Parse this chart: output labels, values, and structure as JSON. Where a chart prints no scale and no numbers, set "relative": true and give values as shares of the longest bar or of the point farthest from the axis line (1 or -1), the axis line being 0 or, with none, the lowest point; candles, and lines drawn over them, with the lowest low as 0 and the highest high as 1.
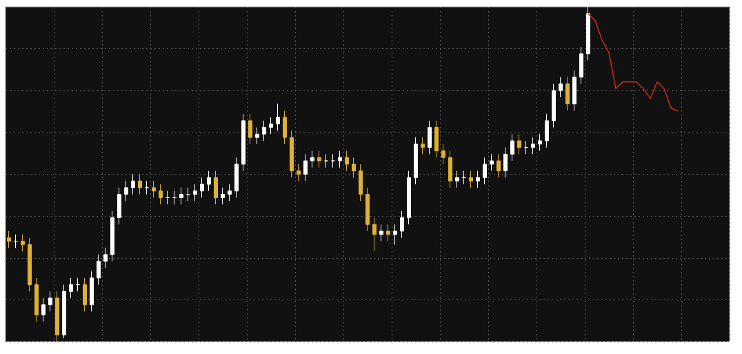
{
  "chart_data": [
    {
      "type": "candlestick",
      "relative": true,
      "grid": true,
      "legend": false,
      "colors": [
        "#e0b030",
        "#ffffff",
        "#e0b030",
        "#e0b030",
        "#e0b030",
        "#ffffff",
        "#ffffff",
        "#e0b030",
        "#ffffff",
        "#ffffff",
        "#ffffff",
        "#e0b030",
        "#ffffff",
        "#ffffff",
        "#ffffff",
        "#ffffff",
        "#ffffff",
        "#ffffff",
        "#ffffff",
        "#e0b030",
        "#ffffff",
        "#e0b030",
        "#e0b030",
        "#ffffff",
        "#ffffff",
        "#ffffff",
        "#ffffff",
        "#ffffff",
        "#ffffff",
        "#ffffff",
        "#e0b030",
        "#ffffff",
        "#ffffff",
        "#ffffff",
        "#ffffff",
        "#e0b030",
        "#ffffff",
        "#ffffff",
        "#ffffff",
        "#ffffff",
        "#e0b030",
        "#e0b030",
        "#e0b030",
        "#ffffff",
        "#ffffff",
        "#e0b030",
        "#ffffff",
        "#ffffff",
        "#ffffff",
        "#e0b030",
        "#e0b030",
        "#e0b030",
        "#e0b030",
        "#e0b030",
        "#ffffff",
        "#e0b030",
        "#ffffff",
        "#ffffff",
        "#ffffff",
        "#ffffff",
        "#e0b030",
        "#ffffff",
        "#e0b030",
        "#e0b030",
        "#e0b030",
        "#ffffff",
        "#ffffff",
        "#e0b030",
        "#ffffff",
        "#ffffff",
        "#ffffff",
        "#e0b030",
        "#ffffff",
        "#ffffff",
        "#e0b030",
        "#ffffff",
        "#ffffff",
        "#ffffff",
        "#ffffff",
        "#ffffff",
        "#ffffff",
        "#e0b030",
        "#ffffff",
        "#ffffff",
        "#ffffff"
      ],
      "categories": [
        null,
        null,
        null,
        null,
        null,
        null,
        null,
        null,
        null,
        null,
        null,
        null,
        null,
        null,
        null,
        null,
        null,
        null,
        null,
        null,
        null,
        null,
        null,
        null,
        null,
        null,
        null,
        null,
        null,
        null,
        null,
        null,
        null,
        null,
        null,
        null,
        null,
        null,
        null,
        null,
        null,
        null,
        null,
        null,
        null,
        null,
        null,
        null,
        null,
        null,
        null,
        null,
        null,
        null,
        null,
        null,
        null,
        null,
        null,
        null,
        null,
        null,
        null,
        null,
        null,
        null,
        null,
        null,
        null,
        null,
        null,
        null,
        null,
        null,
        null,
        null,
        null,
        null,
        null,
        null,
        null,
        null,
        null,
        null,
        null
      ],
      "ohlc": [
        [
          0.31,
          0.33,
          0.28,
          0.3
        ],
        [
          0.3,
          0.32,
          0.28,
          0.3
        ],
        [
          0.3,
          0.32,
          0.27,
          0.29
        ],
        [
          0.29,
          0.31,
          0.15,
          0.17
        ],
        [
          0.17,
          0.19,
          0.06,
          0.08
        ],
        [
          0.08,
          0.13,
          0.06,
          0.11
        ],
        [
          0.11,
          0.15,
          0.09,
          0.13
        ],
        [
          0.13,
          0.15,
          0,
          0.02
        ],
        [
          0.02,
          0.17,
          0.01,
          0.15
        ],
        [
          0.15,
          0.19,
          0.13,
          0.17
        ],
        [
          0.17,
          0.19,
          0.15,
          0.17
        ],
        [
          0.17,
          0.19,
          0.09,
          0.11
        ],
        [
          0.11,
          0.21,
          0.09,
          0.19
        ],
        [
          0.19,
          0.26,
          0.17,
          0.24
        ],
        [
          0.24,
          0.28,
          0.22,
          0.26
        ],
        [
          0.26,
          0.39,
          0.24,
          0.37
        ],
        [
          0.37,
          0.46,
          0.35,
          0.44
        ],
        [
          0.44,
          0.48,
          0.42,
          0.46
        ],
        [
          0.46,
          0.5,
          0.44,
          0.48
        ],
        [
          0.48,
          0.5,
          0.44,
          0.46
        ],
        [
          0.46,
          0.48,
          0.44,
          0.46
        ],
        [
          0.46,
          0.48,
          0.43,
          0.45
        ],
        [
          0.45,
          0.47,
          0.41,
          0.43
        ],
        [
          0.43,
          0.45,
          0.41,
          0.43
        ],
        [
          0.43,
          0.45,
          0.41,
          0.43
        ],
        [
          0.43,
          0.46,
          0.41,
          0.44
        ],
        [
          0.44,
          0.46,
          0.42,
          0.44
        ],
        [
          0.44,
          0.47,
          0.42,
          0.45
        ],
        [
          0.45,
          0.49,
          0.43,
          0.47
        ],
        [
          0.47,
          0.51,
          0.45,
          0.49
        ],
        [
          0.49,
          0.51,
          0.41,
          0.43
        ],
        [
          0.43,
          0.46,
          0.41,
          0.44
        ],
        [
          0.44,
          0.47,
          0.42,
          0.45
        ],
        [
          0.45,
          0.55,
          0.43,
          0.53
        ],
        [
          0.53,
          0.68,
          0.51,
          0.66
        ],
        [
          0.66,
          0.68,
          0.59,
          0.61
        ],
        [
          0.61,
          0.64,
          0.59,
          0.62
        ],
        [
          0.62,
          0.66,
          0.6,
          0.64
        ],
        [
          0.64,
          0.67,
          0.62,
          0.65
        ],
        [
          0.65,
          0.71,
          0.63,
          0.67
        ],
        [
          0.67,
          0.69,
          0.59,
          0.61
        ],
        [
          0.61,
          0.63,
          0.49,
          0.51
        ],
        [
          0.51,
          0.53,
          0.48,
          0.5
        ],
        [
          0.5,
          0.56,
          0.48,
          0.54
        ],
        [
          0.54,
          0.57,
          0.52,
          0.55
        ],
        [
          0.55,
          0.57,
          0.52,
          0.54
        ],
        [
          0.54,
          0.56,
          0.52,
          0.54
        ],
        [
          0.54,
          0.56,
          0.52,
          0.54
        ],
        [
          0.54,
          0.57,
          0.52,
          0.55
        ],
        [
          0.55,
          0.57,
          0.51,
          0.53
        ],
        [
          0.53,
          0.55,
          0.49,
          0.51
        ],
        [
          0.51,
          0.53,
          0.42,
          0.44
        ],
        [
          0.44,
          0.46,
          0.33,
          0.35
        ],
        [
          0.35,
          0.37,
          0.27,
          0.32
        ],
        [
          0.32,
          0.35,
          0.3,
          0.33
        ],
        [
          0.33,
          0.35,
          0.3,
          0.32
        ],
        [
          0.32,
          0.35,
          0.29,
          0.33
        ],
        [
          0.33,
          0.39,
          0.31,
          0.37
        ],
        [
          0.37,
          0.51,
          0.35,
          0.49
        ],
        [
          0.49,
          0.61,
          0.47,
          0.59
        ],
        [
          0.59,
          0.61,
          0.56,
          0.58
        ],
        [
          0.58,
          0.66,
          0.56,
          0.64
        ],
        [
          0.64,
          0.66,
          0.55,
          0.57
        ],
        [
          0.57,
          0.59,
          0.53,
          0.55
        ],
        [
          0.55,
          0.57,
          0.46,
          0.48
        ],
        [
          0.48,
          0.51,
          0.46,
          0.49
        ],
        [
          0.49,
          0.51,
          0.47,
          0.49
        ],
        [
          0.49,
          0.51,
          0.46,
          0.48
        ],
        [
          0.48,
          0.51,
          0.46,
          0.49
        ],
        [
          0.49,
          0.55,
          0.47,
          0.53
        ],
        [
          0.53,
          0.56,
          0.51,
          0.54
        ],
        [
          0.54,
          0.56,
          0.49,
          0.51
        ],
        [
          0.51,
          0.58,
          0.49,
          0.56
        ],
        [
          0.56,
          0.62,
          0.54,
          0.6
        ],
        [
          0.6,
          0.62,
          0.56,
          0.58
        ],
        [
          0.58,
          0.6,
          0.56,
          0.58
        ],
        [
          0.58,
          0.61,
          0.56,
          0.59
        ],
        [
          0.59,
          0.62,
          0.57,
          0.6
        ],
        [
          0.6,
          0.68,
          0.58,
          0.66
        ],
        [
          0.66,
          0.77,
          0.64,
          0.75
        ],
        [
          0.75,
          0.79,
          0.73,
          0.77
        ],
        [
          0.77,
          0.79,
          0.69,
          0.71
        ],
        [
          0.71,
          0.81,
          0.69,
          0.79
        ],
        [
          0.79,
          0.88,
          0.77,
          0.86
        ],
        [
          0.86,
          1,
          0.84,
          0.98
        ]
      ]
    },
    {
      "type": "line",
      "relative": true,
      "legend": false,
      "marker": "none",
      "line_style": "solid",
      "color": "#d42a0a",
      "categories": [
        null,
        null,
        null,
        null,
        null,
        null,
        null,
        null,
        null,
        null,
        null,
        null,
        null,
        null
      ],
      "values": [
        1,
        0.93,
        0.73,
        0.6,
        0.23,
        0.3,
        0.3,
        0.3,
        0.23,
        0.13,
        0.3,
        0.23,
        0.03,
        0
      ]
    }
  ]
}
